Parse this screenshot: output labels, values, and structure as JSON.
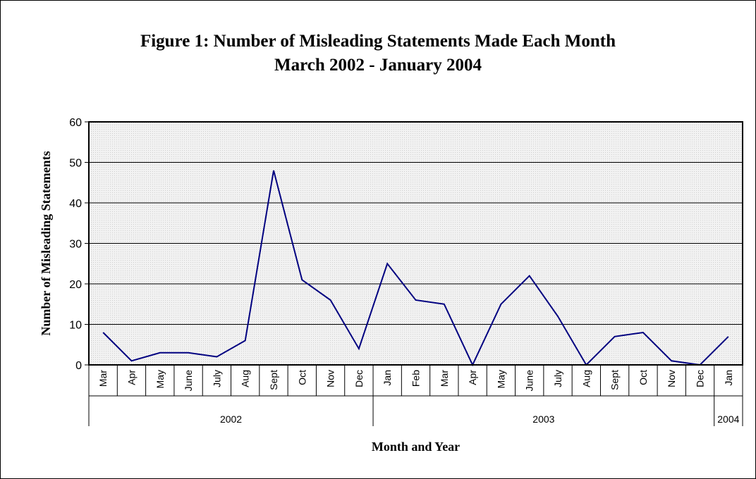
{
  "chart_data": {
    "type": "line",
    "title": "Figure 1:  Number of Misleading Statements Made Each Month",
    "subtitle": "March 2002 - January 2004",
    "xlabel": "Month and Year",
    "ylabel": "Number of Misleading Statements",
    "ylim": [
      0,
      60
    ],
    "yticks": [
      0,
      10,
      20,
      30,
      40,
      50,
      60
    ],
    "grid": true,
    "legend": "none",
    "line_color": "#000080",
    "categories": [
      "Mar",
      "Apr",
      "May",
      "June",
      "July",
      "Aug",
      "Sept",
      "Oct",
      "Nov",
      "Dec",
      "Jan",
      "Feb",
      "Mar",
      "Apr",
      "May",
      "June",
      "July",
      "Aug",
      "Sept",
      "Oct",
      "Nov",
      "Dec",
      "Jan"
    ],
    "years": [
      {
        "label": "2002",
        "start": 0,
        "count": 10
      },
      {
        "label": "2003",
        "start": 10,
        "count": 12
      },
      {
        "label": "2004",
        "start": 22,
        "count": 1
      }
    ],
    "series": [
      {
        "values": [
          8,
          1,
          3,
          3,
          2,
          6,
          48,
          21,
          16,
          4,
          25,
          16,
          15,
          0,
          15,
          22,
          12,
          0,
          7,
          8,
          1,
          0,
          7
        ]
      }
    ]
  }
}
